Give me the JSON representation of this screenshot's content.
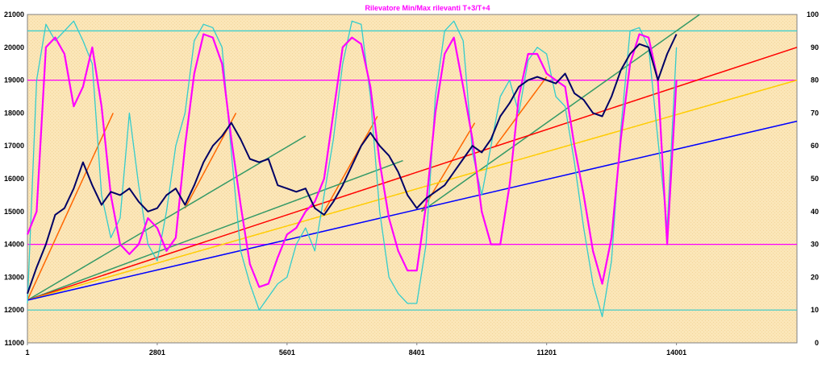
{
  "chart_data": {
    "type": "line",
    "title": "Rilevatore Min/Max rilevanti T+3/T+4",
    "x_ticks": [
      "1",
      "2801",
      "5601",
      "8401",
      "11201",
      "14001"
    ],
    "x_range": [
      1,
      16600
    ],
    "y_left": {
      "range": [
        11000,
        21000
      ],
      "ticks": [
        "11000",
        "12000",
        "13000",
        "14000",
        "15000",
        "16000",
        "17000",
        "18000",
        "19000",
        "20000",
        "21000"
      ]
    },
    "y_right": {
      "range": [
        0,
        100
      ],
      "ticks": [
        "0",
        "10",
        "20",
        "30",
        "40",
        "50",
        "60",
        "70",
        "80",
        "90",
        "100"
      ]
    },
    "horizontal_levels": [
      {
        "value": 95,
        "axis": "right",
        "color": "#33cccc"
      },
      {
        "value": 80,
        "axis": "right",
        "color": "#ff00ff"
      },
      {
        "value": 30,
        "axis": "right",
        "color": "#ff00ff"
      },
      {
        "value": 10,
        "axis": "right",
        "color": "#33cccc"
      }
    ],
    "trend_lines": [
      {
        "color": "#ff6600",
        "x": [
          1,
          1850
        ],
        "y": [
          12300,
          18000
        ]
      },
      {
        "color": "#ff6600",
        "x": [
          3400,
          4500
        ],
        "y": [
          15100,
          18000
        ]
      },
      {
        "color": "#ff6600",
        "x": [
          6400,
          7550
        ],
        "y": [
          15000,
          17900
        ]
      },
      {
        "color": "#ff6600",
        "x": [
          8500,
          9650
        ],
        "y": [
          15000,
          17700
        ]
      },
      {
        "color": "#ff6600",
        "x": [
          10100,
          11200
        ],
        "y": [
          17000,
          19100
        ]
      },
      {
        "color": "#339966",
        "x": [
          1,
          6000
        ],
        "y": [
          12300,
          17300
        ]
      },
      {
        "color": "#339966",
        "x": [
          1,
          8100
        ],
        "y": [
          12300,
          16550
        ]
      },
      {
        "color": "#339966",
        "x": [
          8500,
          14500
        ],
        "y": [
          15000,
          21000
        ]
      },
      {
        "color": "#ff0000",
        "x": [
          1,
          16600
        ],
        "y": [
          12300,
          20000
        ]
      },
      {
        "color": "#ffcc00",
        "x": [
          1,
          16600
        ],
        "y": [
          12300,
          19000
        ]
      },
      {
        "color": "#0000ff",
        "x": [
          1,
          16600
        ],
        "y": [
          12300,
          17750
        ]
      }
    ],
    "series": [
      {
        "axis": "left",
        "color": "#000066",
        "x": [
          1,
          200,
          400,
          600,
          800,
          1000,
          1200,
          1400,
          1600,
          1800,
          2000,
          2200,
          2400,
          2600,
          2800,
          3000,
          3200,
          3400,
          3600,
          3800,
          4000,
          4200,
          4400,
          4600,
          4800,
          5000,
          5200,
          5400,
          5600,
          5800,
          6000,
          6200,
          6400,
          6600,
          6800,
          7000,
          7200,
          7400,
          7600,
          7800,
          8000,
          8200,
          8400,
          8600,
          8800,
          9000,
          9200,
          9400,
          9600,
          9800,
          10000,
          10200,
          10400,
          10600,
          10800,
          11000,
          11200,
          11400,
          11600,
          11800,
          12000,
          12200,
          12400,
          12600,
          12800,
          13000,
          13200,
          13400,
          13600,
          13800,
          14000
        ],
        "y": [
          12500,
          13300,
          14000,
          14900,
          15100,
          15700,
          16500,
          15800,
          15200,
          15600,
          15500,
          15700,
          15300,
          15000,
          15100,
          15500,
          15700,
          15200,
          15800,
          16500,
          17000,
          17300,
          17700,
          17200,
          16600,
          16500,
          16600,
          15800,
          15700,
          15600,
          15700,
          15100,
          14900,
          15300,
          15800,
          16400,
          17000,
          17400,
          17000,
          16700,
          16200,
          15500,
          15100,
          15400,
          15600,
          15800,
          16200,
          16600,
          17000,
          16800,
          17200,
          17900,
          18300,
          18800,
          19000,
          19100,
          19000,
          18900,
          19200,
          18600,
          18400,
          18000,
          17900,
          18500,
          19300,
          19800,
          20100,
          20000,
          19000,
          19800,
          20400
        ]
      },
      {
        "axis": "right",
        "color": "#ff00ff",
        "x": [
          1,
          200,
          400,
          600,
          800,
          1000,
          1200,
          1400,
          1600,
          1800,
          2000,
          2200,
          2400,
          2600,
          2800,
          3000,
          3200,
          3400,
          3600,
          3800,
          4000,
          4200,
          4400,
          4600,
          4800,
          5000,
          5200,
          5400,
          5600,
          5800,
          6000,
          6200,
          6400,
          6600,
          6800,
          7000,
          7200,
          7400,
          7600,
          7800,
          8000,
          8200,
          8400,
          8600,
          8800,
          9000,
          9200,
          9400,
          9600,
          9800,
          10000,
          10200,
          10400,
          10600,
          10800,
          11000,
          11200,
          11400,
          11600,
          11800,
          12000,
          12200,
          12400,
          12600,
          12800,
          13000,
          13200,
          13400,
          13600,
          13800,
          14000
        ],
        "y": [
          33,
          40,
          90,
          93,
          88,
          72,
          78,
          90,
          72,
          45,
          30,
          27,
          30,
          38,
          35,
          28,
          32,
          60,
          82,
          94,
          93,
          85,
          62,
          42,
          24,
          17,
          18,
          26,
          33,
          35,
          40,
          43,
          50,
          70,
          90,
          93,
          91,
          78,
          55,
          38,
          28,
          22,
          22,
          42,
          70,
          88,
          93,
          78,
          62,
          40,
          30,
          30,
          48,
          75,
          88,
          88,
          82,
          80,
          78,
          60,
          45,
          28,
          18,
          32,
          62,
          85,
          94,
          93,
          80,
          30,
          80
        ]
      },
      {
        "axis": "right",
        "color": "#33cccc",
        "x": [
          1,
          200,
          400,
          600,
          800,
          1000,
          1200,
          1400,
          1600,
          1800,
          2000,
          2200,
          2400,
          2600,
          2800,
          3000,
          3200,
          3400,
          3600,
          3800,
          4000,
          4200,
          4400,
          4600,
          4800,
          5000,
          5200,
          5400,
          5600,
          5800,
          6000,
          6200,
          6400,
          6600,
          6800,
          7000,
          7200,
          7400,
          7600,
          7800,
          8000,
          8200,
          8400,
          8600,
          8800,
          9000,
          9200,
          9400,
          9600,
          9800,
          10000,
          10200,
          10400,
          10600,
          10800,
          11000,
          11200,
          11400,
          11600,
          11800,
          12000,
          12200,
          12400,
          12600,
          12800,
          13000,
          13200,
          13400,
          13600,
          13800,
          14000
        ],
        "y": [
          12,
          80,
          97,
          92,
          95,
          98,
          92,
          85,
          45,
          32,
          38,
          70,
          48,
          30,
          25,
          40,
          60,
          70,
          92,
          97,
          96,
          90,
          58,
          28,
          18,
          10,
          14,
          18,
          20,
          30,
          35,
          28,
          45,
          62,
          85,
          98,
          97,
          75,
          40,
          20,
          15,
          12,
          12,
          30,
          75,
          95,
          98,
          92,
          58,
          45,
          60,
          75,
          80,
          70,
          86,
          90,
          88,
          75,
          72,
          55,
          35,
          18,
          8,
          25,
          65,
          95,
          96,
          90,
          62,
          35,
          90
        ]
      }
    ]
  }
}
